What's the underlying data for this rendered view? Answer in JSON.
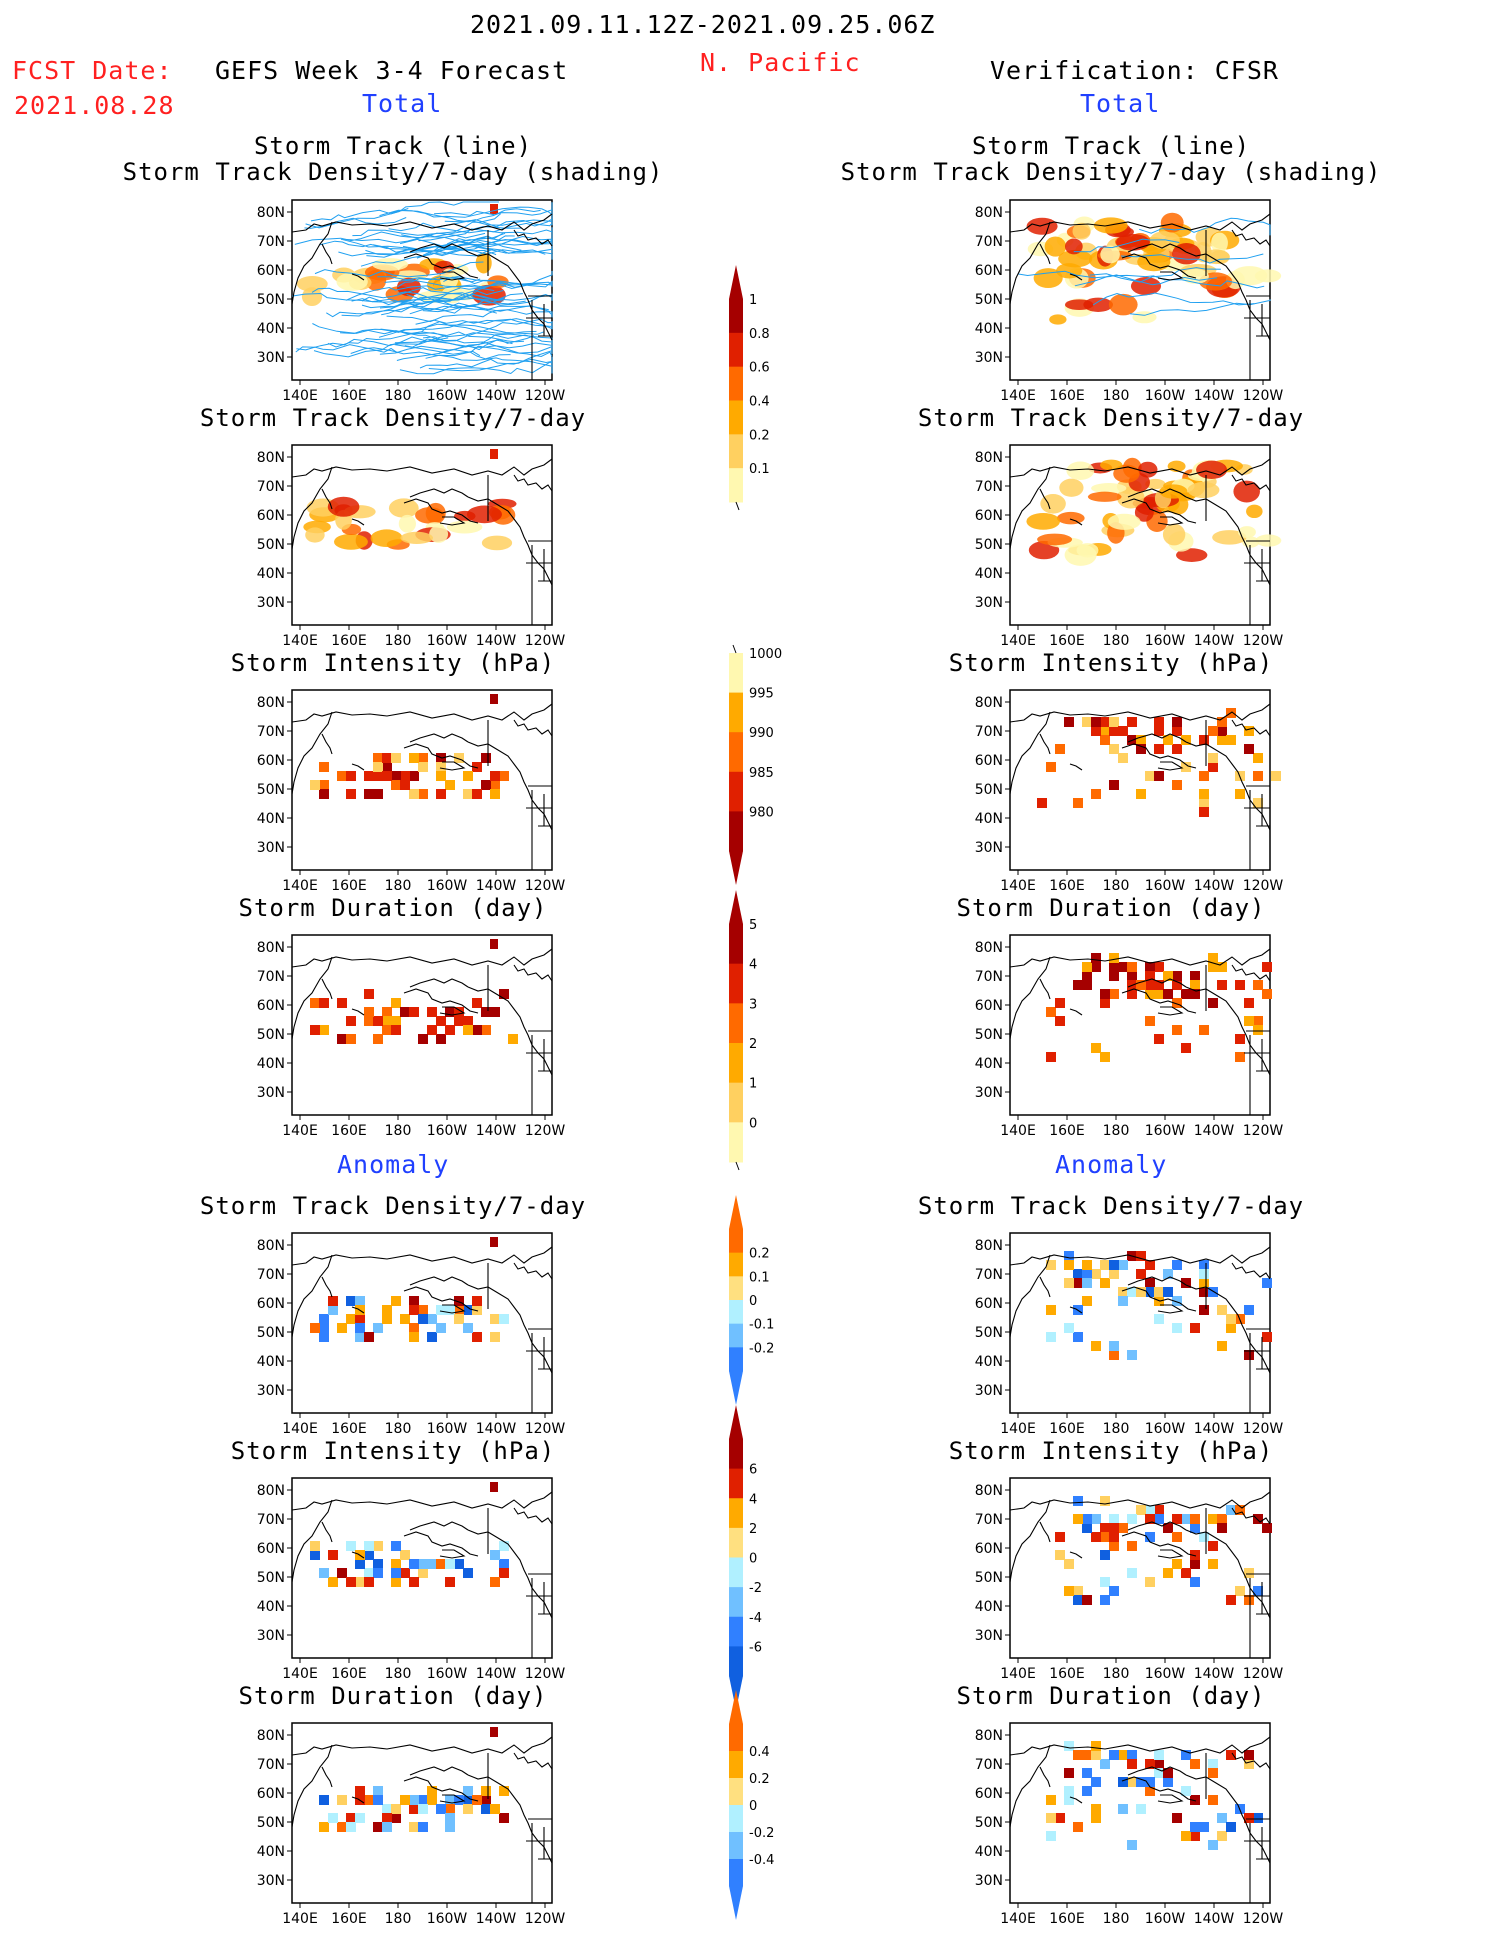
{
  "header": {
    "period": "2021.09.11.12Z-2021.09.25.06Z",
    "fcst_label": "FCST Date:",
    "fcst_date": "2021.08.28",
    "left_title": "GEFS Week 3-4 Forecast",
    "region": "N. Pacific",
    "right_title": "Verification: CFSR",
    "total_left": "Total",
    "total_right": "Total",
    "anomaly_left": "Anomaly",
    "anomaly_right": "Anomaly"
  },
  "axes": {
    "lat_labels": [
      "80N",
      "70N",
      "60N",
      "50N",
      "40N",
      "30N"
    ],
    "lon_labels": [
      "140E",
      "160E",
      "180",
      "160W",
      "140W",
      "120W"
    ]
  },
  "panels": {
    "track_title_1": "Storm Track (line)",
    "track_title_2": "Storm Track Density/7-day (shading)",
    "density": "Storm Track Density/7-day",
    "intensity": "Storm Intensity (hPa)",
    "duration": "Storm Duration (day)"
  },
  "colorbars": {
    "density": {
      "labels": [
        "1",
        "0.8",
        "0.6",
        "0.4",
        "0.2",
        "0.1"
      ],
      "colors": [
        "#a50000",
        "#e02000",
        "#ff6a00",
        "#ffaa00",
        "#ffd060",
        "#fff8b0"
      ],
      "end": "top"
    },
    "intensity": {
      "labels": [
        "1000",
        "995",
        "990",
        "985",
        "980"
      ],
      "colors": [
        "#fff8b0",
        "#ffaa00",
        "#ff6a00",
        "#e02000",
        "#a50000"
      ],
      "end": "bottom"
    },
    "duration": {
      "labels": [
        "5",
        "4",
        "3",
        "2",
        "1",
        "0"
      ],
      "colors": [
        "#a50000",
        "#e02000",
        "#ff6a00",
        "#ffaa00",
        "#ffd060",
        "#fff8b0"
      ],
      "end": "top"
    },
    "anom_density": {
      "labels": [
        "0.2",
        "0.1",
        "0",
        "-0.1",
        "-0.2"
      ],
      "colors": [
        "#ff6a00",
        "#ffaa00",
        "#ffe080",
        "#b0f0ff",
        "#70c0ff",
        "#3080ff"
      ],
      "end": "both"
    },
    "anom_intensity": {
      "labels": [
        "6",
        "4",
        "2",
        "0",
        "-2",
        "-4",
        "-6"
      ],
      "colors": [
        "#a50000",
        "#e02000",
        "#ffaa00",
        "#ffe080",
        "#b0f0ff",
        "#70c0ff",
        "#3080ff",
        "#1060e0"
      ],
      "end": "both"
    },
    "anom_duration": {
      "labels": [
        "0.4",
        "0.2",
        "0",
        "-0.2",
        "-0.4"
      ],
      "colors": [
        "#ff6a00",
        "#ffaa00",
        "#ffe080",
        "#b0f0ff",
        "#70c0ff",
        "#3080ff"
      ],
      "end": "both"
    }
  }
}
